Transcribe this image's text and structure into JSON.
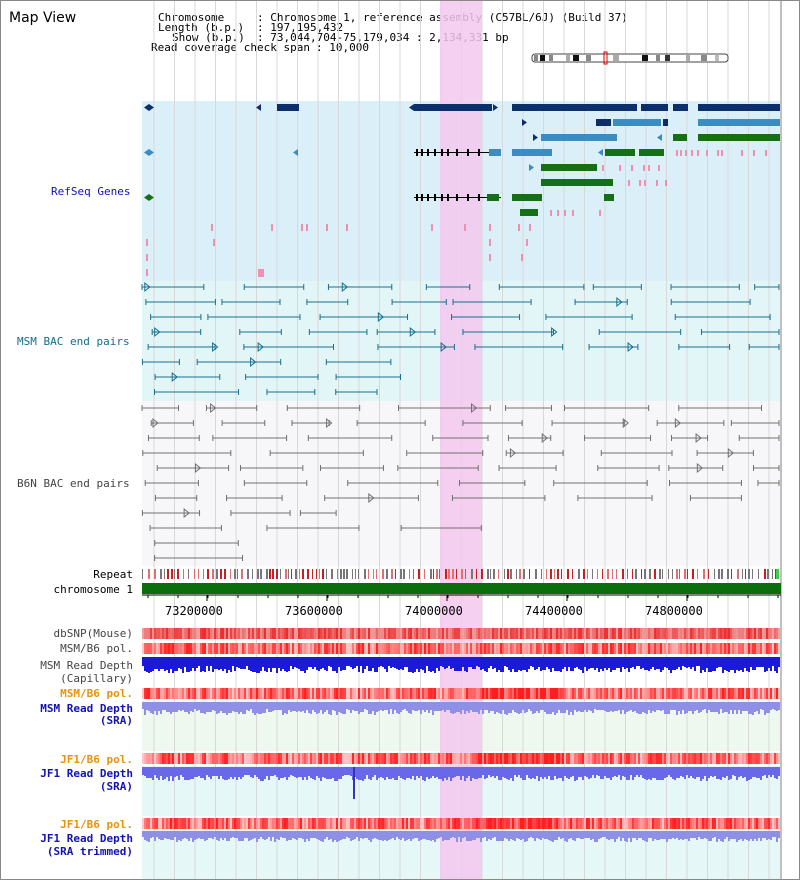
{
  "title": "Map View",
  "info": {
    "chromosome_label": "Chromosome",
    "chromosome_value": ": Chromosome 1, reference assembly (C57BL/6J) (Build 37)",
    "length_label": "Length (b.p.)",
    "length_value": ": 197,195,432",
    "show_label": "Show (b.p.)",
    "show_value": ": 73,044,704-75,179,034 : 2,134,331 bp",
    "coverage_label": "Read coverage check span",
    "coverage_value": ": 10,000"
  },
  "tracks": {
    "refseq": "RefSeq Genes",
    "msm_bac": "MSM BAC end pairs",
    "b6n_bac": "B6N BAC end pairs",
    "repeat": "Repeat",
    "chromosome": "chromosome 1",
    "dbsnp": "dbSNP(Mouse)",
    "msm_b6_pol": "MSM/B6 pol.",
    "msm_depth_cap_1": "MSM Read Depth",
    "msm_depth_cap_2": "(Capillary)",
    "msm_b6_pol_sra": "MSM/B6 pol.",
    "msm_depth_sra_1": "MSM Read Depth",
    "msm_depth_sra_2": "(SRA)",
    "jf1_b6_pol": "JF1/B6 pol.",
    "jf1_depth_1": "JF1 Read Depth",
    "jf1_depth_2": "(SRA)",
    "jf1_b6_pol_trim": "JF1/B6 pol.",
    "jf1_trim_1": "JF1 Read Depth",
    "jf1_trim_2": "(SRA trimmed)"
  },
  "axis_ticks": [
    "73200000",
    "73600000",
    "74000000",
    "74400000",
    "74800000"
  ],
  "colors": {
    "refseq_bg": "#dbeff9",
    "msm_bg": "#e3f6f7",
    "b6n_bg": "#f7f7f9",
    "highlight": "#f3c8ee",
    "gene_dark": "#0c2f6b",
    "gene_mid": "#3b8cc0",
    "gene_green": "#157015",
    "chromosome": "#0a6f0a",
    "msm_line": "#1b6e8c",
    "b6n_line": "#707070",
    "label_blue": "#1212b5",
    "label_orange": "#e8930a",
    "label_teal": "#0f6e8a",
    "label_gray": "#444444"
  }
}
